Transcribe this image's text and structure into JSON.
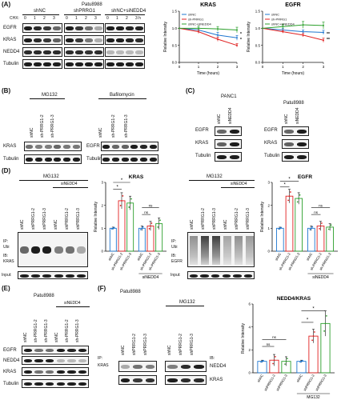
{
  "panels": {
    "A": "(A)",
    "B": "(B)",
    "C": "(C)",
    "D": "(D)",
    "E": "(E)",
    "F": "(F)"
  },
  "panel_a": {
    "cell_line": "Patu8988",
    "groups": [
      "shNC",
      "shPRRG1",
      "shNC+siNEDD4"
    ],
    "chx_label": "CHX:",
    "time_points": [
      "0",
      "1",
      "2",
      "3",
      "0",
      "1",
      "2",
      "3",
      "0",
      "1",
      "2",
      "3 h"
    ],
    "rows": [
      "EGFR",
      "KRAS",
      "NEDD4",
      "Tubulin"
    ]
  },
  "panel_b": {
    "treatments": [
      "MG132",
      "Bafilomycin"
    ],
    "lanes": [
      "shNC",
      "sh-PRRG1-2",
      "sh-PRRG1-3",
      "shNC",
      "sh-PRRG1-2",
      "sh-PRRG1-3"
    ],
    "rows_left": [
      "KRAS",
      "Tubulin"
    ],
    "rows_right": [
      "EGFR",
      "Tubulin"
    ]
  },
  "panel_c": {
    "cell_lines": [
      "PANC1",
      "Patu8988"
    ],
    "lanes": [
      "shNC",
      "siNEDD4",
      "shNC",
      "siNEDD4"
    ],
    "rows": [
      "EGFR",
      "KRAS",
      "Tubulin"
    ]
  },
  "panel_d": {
    "treatment": "MG132",
    "sinedd4": "siNEDD4",
    "lanes": [
      "shNC",
      "shPRRG1-2",
      "shPRRG1-3",
      "shNC",
      "shPRRG1-2",
      "shPRRG1-3"
    ],
    "ip": "IP:",
    "ip_target": "Ubi",
    "ib": "IB:",
    "ib_left": "KRAS",
    "ib_right": "EGFR",
    "input": "Input:",
    "bar_xlabels": [
      "shNC",
      "sh-PRRG1-2",
      "sh-PRRG1-3",
      "shNC",
      "sh-PRRG1-2",
      "sh-PRRG1-3"
    ],
    "bar_group_label": "siNEDD4",
    "ns": "ns",
    "star": "*"
  },
  "panel_e": {
    "cell_line": "Patu8988",
    "sinedd4": "siNEDD4",
    "lanes": [
      "shNC",
      "sh-PRRG1-2",
      "sh-PRRG1-3",
      "shNC",
      "sh-PRRG1-2",
      "sh-PRRG1-3"
    ],
    "rows": [
      "EGFR",
      "NEDD4",
      "KRAS",
      "Tubulin"
    ]
  },
  "panel_f": {
    "cell_line": "Patu8988",
    "treatment": "MG132",
    "lanes": [
      "shNC",
      "shPRRG1-2",
      "shPRRG1-3",
      "shNC",
      "shPRRG1-2",
      "shPRRG1-3"
    ],
    "ip": "IP:",
    "ip_target": "KRAS",
    "ib": "IB:",
    "rows": [
      "NEDD4",
      "KRAS"
    ],
    "bar_group_label": "MG132",
    "ns": "ns",
    "star": "*"
  },
  "chart_data": [
    {
      "type": "line",
      "title": "KRAS",
      "xlabel": "Time (hours)",
      "ylabel": "Relative Intensity",
      "x": [
        0,
        1,
        2,
        3
      ],
      "xlim": [
        0,
        3
      ],
      "ylim": [
        0,
        1.5
      ],
      "yticks": [
        "0.0",
        "0.5",
        "1.0",
        "1.5"
      ],
      "xticks": [
        "0",
        "1",
        "2",
        "3"
      ],
      "legend_position": "top-left",
      "series": [
        {
          "name": "shNC",
          "color": "#1f77d0",
          "values": [
            1.0,
            0.95,
            0.8,
            0.72
          ],
          "err": [
            0.0,
            0.06,
            0.08,
            0.07
          ]
        },
        {
          "name": "sh-PRRG1",
          "color": "#e02020",
          "values": [
            1.0,
            0.9,
            0.68,
            0.5
          ],
          "err": [
            0.0,
            0.05,
            0.06,
            0.05
          ]
        },
        {
          "name": "shNC+siNEDD4",
          "color": "#2ca02c",
          "values": [
            1.0,
            1.0,
            0.98,
            0.95
          ],
          "err": [
            0.0,
            0.06,
            0.07,
            0.08
          ]
        }
      ],
      "significance": [
        "*",
        "*"
      ]
    },
    {
      "type": "line",
      "title": "EGFR",
      "xlabel": "Time (hours)",
      "ylabel": "Relative Intensity",
      "x": [
        0,
        1,
        2,
        3
      ],
      "xlim": [
        0,
        3
      ],
      "ylim": [
        0,
        1.5
      ],
      "yticks": [
        "0.0",
        "0.5",
        "1.0",
        "1.5"
      ],
      "xticks": [
        "0",
        "1",
        "2",
        "3"
      ],
      "legend_position": "top-left",
      "series": [
        {
          "name": "shNC",
          "color": "#1f77d0",
          "values": [
            1.0,
            0.95,
            0.9,
            0.88
          ],
          "err": [
            0.0,
            0.05,
            0.05,
            0.06
          ]
        },
        {
          "name": "sh-PRRG1",
          "color": "#e02020",
          "values": [
            1.0,
            0.9,
            0.8,
            0.65
          ],
          "err": [
            0.0,
            0.04,
            0.05,
            0.06
          ]
        },
        {
          "name": "shNC+siNEDD4",
          "color": "#2ca02c",
          "values": [
            1.0,
            1.05,
            1.1,
            1.08
          ],
          "err": [
            0.0,
            0.07,
            0.1,
            0.1
          ]
        }
      ],
      "significance": [
        "**",
        "**"
      ]
    },
    {
      "type": "bar",
      "title": "KRAS",
      "ylabel": "Relative Intensity",
      "ylim": [
        0,
        3
      ],
      "yticks": [
        "0",
        "1",
        "2",
        "3"
      ],
      "categories": [
        "shNC",
        "sh-PRRG1-2",
        "sh-PRRG1-3",
        "shNC",
        "sh-PRRG1-2",
        "sh-PRRG1-3"
      ],
      "values": [
        1.0,
        2.2,
        2.1,
        1.0,
        1.1,
        1.2
      ],
      "err": [
        0.05,
        0.35,
        0.3,
        0.1,
        0.2,
        0.25
      ],
      "colors": [
        "#1f77d0",
        "#e02020",
        "#2ca02c",
        "#1f77d0",
        "#e02020",
        "#2ca02c"
      ]
    },
    {
      "type": "bar",
      "title": "EGFR",
      "ylabel": "Relative Intensity",
      "ylim": [
        0,
        3
      ],
      "yticks": [
        "0",
        "1",
        "2",
        "3"
      ],
      "categories": [
        "shNC",
        "sh-PRRG1-2",
        "sh-PRRG1-3",
        "shNC",
        "sh-PRRG1-2",
        "sh-PRRG1-3"
      ],
      "values": [
        1.0,
        2.4,
        2.3,
        1.0,
        1.1,
        1.05
      ],
      "err": [
        0.05,
        0.3,
        0.25,
        0.1,
        0.2,
        0.15
      ],
      "colors": [
        "#1f77d0",
        "#e02020",
        "#2ca02c",
        "#1f77d0",
        "#e02020",
        "#2ca02c"
      ]
    },
    {
      "type": "bar",
      "title": "NEDD4/KRAS",
      "ylabel": "Relative Intensity",
      "ylim": [
        0,
        6
      ],
      "yticks": [
        "0",
        "2",
        "4",
        "6"
      ],
      "categories": [
        "shNC",
        "shPRRG1-2",
        "shPRRG1-3",
        "shNC",
        "shPRRG1-2",
        "shPRRG1-3"
      ],
      "values": [
        1.0,
        1.1,
        1.0,
        1.0,
        3.2,
        4.3
      ],
      "err": [
        0.1,
        0.5,
        0.4,
        0.1,
        0.6,
        1.1
      ],
      "colors": [
        "#1f77d0",
        "#e02020",
        "#2ca02c",
        "#1f77d0",
        "#e02020",
        "#2ca02c"
      ]
    }
  ]
}
